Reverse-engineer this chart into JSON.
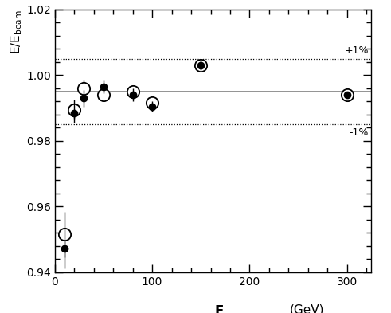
{
  "title": "",
  "xlabel_e": "E,",
  "xlabel_gev": "(GeV)",
  "ylabel": "E/E$_\\mathrm{beam}$",
  "xlim": [
    0,
    325
  ],
  "ylim": [
    0.94,
    1.02
  ],
  "yticks": [
    0.94,
    0.96,
    0.98,
    1.0,
    1.02
  ],
  "xticks": [
    0,
    100,
    200,
    300
  ],
  "hline_solid": 0.995,
  "hline_dotted_upper": 1.005,
  "hline_dotted_lower": 0.985,
  "label_plus1": "+1%",
  "label_minus1": "-1%",
  "filled_x": [
    10,
    20,
    30,
    50,
    80,
    100,
    150,
    300
  ],
  "filled_y": [
    0.9472,
    0.9885,
    0.993,
    0.9965,
    0.994,
    0.9905,
    1.003,
    0.994
  ],
  "filled_yerr": [
    0.006,
    0.003,
    0.0025,
    0.002,
    0.002,
    0.0015,
    0.0015,
    0.001
  ],
  "open_x": [
    10,
    20,
    30,
    50,
    80,
    100,
    150,
    300
  ],
  "open_y": [
    0.9515,
    0.9895,
    0.996,
    0.994,
    0.995,
    0.9915,
    1.003,
    0.994
  ],
  "open_yerr": [
    0.007,
    0.003,
    0.0025,
    0.002,
    0.002,
    0.0015,
    0.0015,
    0.001
  ],
  "marker_size_filled": 6,
  "marker_size_open": 11,
  "background_color": "#ffffff"
}
